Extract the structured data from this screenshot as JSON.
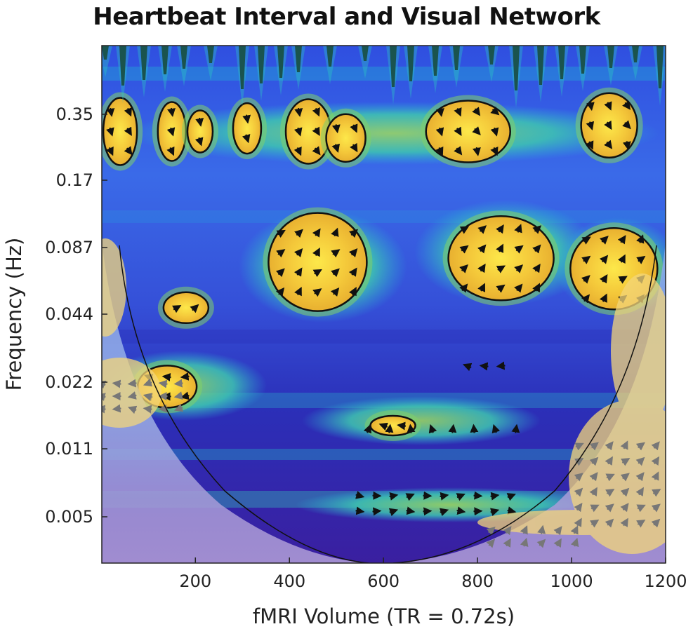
{
  "chart_data": {
    "type": "heatmap",
    "title": "Heartbeat Interval and Visual Network",
    "xlabel": "fMRI Volume (TR = 0.72s)",
    "ylabel": "Frequency (Hz)",
    "xlim": [
      1,
      1200
    ],
    "x_ticks": [
      200,
      400,
      600,
      800,
      1000,
      1200
    ],
    "y_ticks": [
      "0.35",
      "0.17",
      "0.087",
      "0.044",
      "0.022",
      "0.011",
      "0.005"
    ],
    "y_scale": "log2",
    "colormap": [
      "#3b1fa8",
      "#3a4fe0",
      "#1f8fe6",
      "#26c0c4",
      "#8bd66a",
      "#f3c83a",
      "#fbe24a"
    ],
    "significant_regions": [
      {
        "x": 40,
        "freq": 0.29
      },
      {
        "x": 150,
        "freq": 0.29
      },
      {
        "x": 210,
        "freq": 0.29
      },
      {
        "x": 310,
        "freq": 0.3
      },
      {
        "x": 440,
        "freq": 0.29
      },
      {
        "x": 520,
        "freq": 0.27
      },
      {
        "x": 780,
        "freq": 0.29
      },
      {
        "x": 1080,
        "freq": 0.31
      },
      {
        "x": 460,
        "freq": 0.075
      },
      {
        "x": 850,
        "freq": 0.078
      },
      {
        "x": 1090,
        "freq": 0.07
      },
      {
        "x": 140,
        "freq": 0.021
      },
      {
        "x": 620,
        "freq": 0.014
      },
      {
        "x": 180,
        "freq": 0.047
      }
    ],
    "cone_of_influence": true,
    "phase_arrows": true
  }
}
